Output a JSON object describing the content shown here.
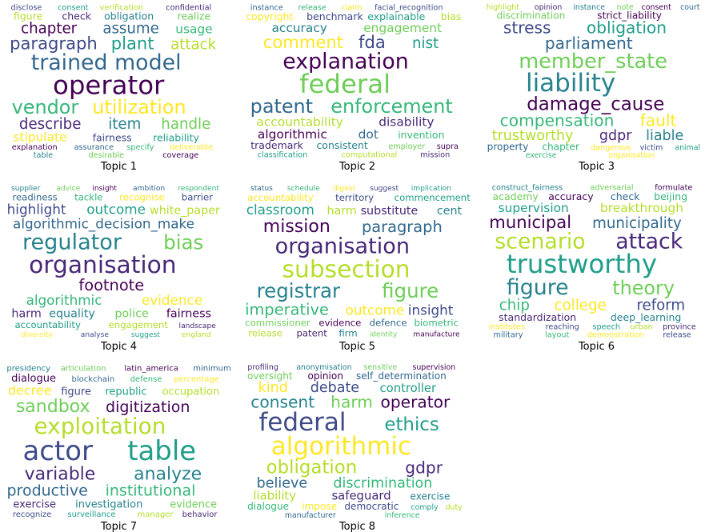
{
  "palette": [
    "#440154",
    "#482878",
    "#3e4a89",
    "#31688e",
    "#26828e",
    "#1f9e89",
    "#35b779",
    "#6ece58",
    "#b5de2b",
    "#fde725"
  ],
  "topics": [
    {
      "label": "Topic 1",
      "words": [
        {
          "text": "operator",
          "weight": 10
        },
        {
          "text": "trained model",
          "weight": 8
        },
        {
          "text": "vendor",
          "weight": 7
        },
        {
          "text": "utilization",
          "weight": 7
        },
        {
          "text": "paragraph",
          "weight": 6
        },
        {
          "text": "plant",
          "weight": 6
        },
        {
          "text": "attack",
          "weight": 5
        },
        {
          "text": "describe",
          "weight": 5
        },
        {
          "text": "item",
          "weight": 5
        },
        {
          "text": "handle",
          "weight": 5
        },
        {
          "text": "chapter",
          "weight": 5
        },
        {
          "text": "assume",
          "weight": 5
        },
        {
          "text": "usage",
          "weight": 4
        },
        {
          "text": "stipulate",
          "weight": 4
        },
        {
          "text": "fairness",
          "weight": 3
        },
        {
          "text": "reliability",
          "weight": 3
        },
        {
          "text": "figure",
          "weight": 3
        },
        {
          "text": "check",
          "weight": 3
        },
        {
          "text": "obligation",
          "weight": 3
        },
        {
          "text": "realize",
          "weight": 3
        },
        {
          "text": "explanation",
          "weight": 2
        },
        {
          "text": "assurance",
          "weight": 2
        },
        {
          "text": "specify",
          "weight": 2
        },
        {
          "text": "deliverable",
          "weight": 2
        },
        {
          "text": "disclose",
          "weight": 2
        },
        {
          "text": "consent",
          "weight": 2
        },
        {
          "text": "verification",
          "weight": 2
        },
        {
          "text": "confidential",
          "weight": 2
        },
        {
          "text": "table",
          "weight": 2
        },
        {
          "text": "desirable",
          "weight": 2
        },
        {
          "text": "coverage",
          "weight": 2
        }
      ]
    },
    {
      "label": "Topic 2",
      "words": [
        {
          "text": "federal",
          "weight": 10
        },
        {
          "text": "explanation",
          "weight": 8
        },
        {
          "text": "patent",
          "weight": 7
        },
        {
          "text": "enforcement",
          "weight": 7
        },
        {
          "text": "comment",
          "weight": 6
        },
        {
          "text": "fda",
          "weight": 6
        },
        {
          "text": "nist",
          "weight": 5
        },
        {
          "text": "accountability",
          "weight": 4
        },
        {
          "text": "disability",
          "weight": 4
        },
        {
          "text": "accuracy",
          "weight": 4
        },
        {
          "text": "engagement",
          "weight": 4
        },
        {
          "text": "algorithmic",
          "weight": 4
        },
        {
          "text": "dot",
          "weight": 4
        },
        {
          "text": "invention",
          "weight": 3
        },
        {
          "text": "copyright",
          "weight": 3
        },
        {
          "text": "benchmark",
          "weight": 3
        },
        {
          "text": "explainable",
          "weight": 3
        },
        {
          "text": "bias",
          "weight": 3
        },
        {
          "text": "trademark",
          "weight": 3
        },
        {
          "text": "consistent",
          "weight": 3
        },
        {
          "text": "employer",
          "weight": 2
        },
        {
          "text": "supra",
          "weight": 2
        },
        {
          "text": "instance",
          "weight": 2
        },
        {
          "text": "release",
          "weight": 2
        },
        {
          "text": "claim",
          "weight": 2
        },
        {
          "text": "facial_recognition",
          "weight": 2
        },
        {
          "text": "classification",
          "weight": 2
        },
        {
          "text": "computational",
          "weight": 2
        },
        {
          "text": "mission",
          "weight": 2
        }
      ]
    },
    {
      "label": "Topic 3",
      "words": [
        {
          "text": "liability",
          "weight": 10
        },
        {
          "text": "member_state",
          "weight": 8
        },
        {
          "text": "damage_cause",
          "weight": 7
        },
        {
          "text": "parliament",
          "weight": 6
        },
        {
          "text": "compensation",
          "weight": 6
        },
        {
          "text": "fault",
          "weight": 6
        },
        {
          "text": "stress",
          "weight": 6
        },
        {
          "text": "obligation",
          "weight": 6
        },
        {
          "text": "trustworthy",
          "weight": 5
        },
        {
          "text": "gdpr",
          "weight": 5
        },
        {
          "text": "liable",
          "weight": 5
        },
        {
          "text": "discrimination",
          "weight": 3
        },
        {
          "text": "strict_liability",
          "weight": 3
        },
        {
          "text": "property",
          "weight": 3
        },
        {
          "text": "chapter",
          "weight": 3
        },
        {
          "text": "dangerous",
          "weight": 2
        },
        {
          "text": "victim",
          "weight": 2
        },
        {
          "text": "animal",
          "weight": 2
        },
        {
          "text": "highlight",
          "weight": 2
        },
        {
          "text": "opinion",
          "weight": 2
        },
        {
          "text": "instance",
          "weight": 2
        },
        {
          "text": "note",
          "weight": 2
        },
        {
          "text": "consent",
          "weight": 2
        },
        {
          "text": "court",
          "weight": 2
        },
        {
          "text": "exercise",
          "weight": 2
        },
        {
          "text": "organisation",
          "weight": 2
        }
      ]
    },
    {
      "label": "Topic 4",
      "words": [
        {
          "text": "organisation",
          "weight": 10
        },
        {
          "text": "regulator",
          "weight": 9
        },
        {
          "text": "bias",
          "weight": 8
        },
        {
          "text": "footnote",
          "weight": 6
        },
        {
          "text": "algorithmic_decision_make",
          "weight": 5
        },
        {
          "text": "algorithmic",
          "weight": 5
        },
        {
          "text": "evidence",
          "weight": 5
        },
        {
          "text": "highlight",
          "weight": 5
        },
        {
          "text": "outcome",
          "weight": 5
        },
        {
          "text": "white_paper",
          "weight": 4
        },
        {
          "text": "harm",
          "weight": 4
        },
        {
          "text": "equality",
          "weight": 4
        },
        {
          "text": "police",
          "weight": 4
        },
        {
          "text": "fairness",
          "weight": 4
        },
        {
          "text": "readiness",
          "weight": 3
        },
        {
          "text": "tackle",
          "weight": 3
        },
        {
          "text": "recognise",
          "weight": 3
        },
        {
          "text": "barrier",
          "weight": 3
        },
        {
          "text": "accountability",
          "weight": 3
        },
        {
          "text": "engagement",
          "weight": 3
        },
        {
          "text": "landscape",
          "weight": 2
        },
        {
          "text": "supplier",
          "weight": 2
        },
        {
          "text": "advice",
          "weight": 2
        },
        {
          "text": "insight",
          "weight": 2
        },
        {
          "text": "ambition",
          "weight": 2
        },
        {
          "text": "respondent",
          "weight": 2
        },
        {
          "text": "diversity",
          "weight": 2
        },
        {
          "text": "analyse",
          "weight": 2
        },
        {
          "text": "suggest",
          "weight": 2
        },
        {
          "text": "england",
          "weight": 2
        }
      ]
    },
    {
      "label": "Topic 5",
      "words": [
        {
          "text": "subsection",
          "weight": 10
        },
        {
          "text": "organisation",
          "weight": 9
        },
        {
          "text": "registrar",
          "weight": 8
        },
        {
          "text": "figure",
          "weight": 8
        },
        {
          "text": "mission",
          "weight": 7
        },
        {
          "text": "paragraph",
          "weight": 6
        },
        {
          "text": "imperative",
          "weight": 6
        },
        {
          "text": "outcome",
          "weight": 5
        },
        {
          "text": "insight",
          "weight": 5
        },
        {
          "text": "classroom",
          "weight": 5
        },
        {
          "text": "harm",
          "weight": 4
        },
        {
          "text": "substitute",
          "weight": 4
        },
        {
          "text": "cent",
          "weight": 4
        },
        {
          "text": "commissioner",
          "weight": 3
        },
        {
          "text": "evidence",
          "weight": 3
        },
        {
          "text": "defence",
          "weight": 3
        },
        {
          "text": "biometric",
          "weight": 3
        },
        {
          "text": "accountability",
          "weight": 3
        },
        {
          "text": "territory",
          "weight": 3
        },
        {
          "text": "commencement",
          "weight": 3
        },
        {
          "text": "release",
          "weight": 3
        },
        {
          "text": "patent",
          "weight": 3
        },
        {
          "text": "firm",
          "weight": 3
        },
        {
          "text": "identity",
          "weight": 2
        },
        {
          "text": "manufacture",
          "weight": 2
        },
        {
          "text": "status",
          "weight": 2
        },
        {
          "text": "schedule",
          "weight": 2
        },
        {
          "text": "digest",
          "weight": 2
        },
        {
          "text": "suggest",
          "weight": 2
        },
        {
          "text": "implication",
          "weight": 2
        }
      ]
    },
    {
      "label": "Topic 6",
      "words": [
        {
          "text": "trustworthy",
          "weight": 10
        },
        {
          "text": "scenario",
          "weight": 8
        },
        {
          "text": "attack",
          "weight": 8
        },
        {
          "text": "figure",
          "weight": 8
        },
        {
          "text": "theory",
          "weight": 7
        },
        {
          "text": "municipal",
          "weight": 6
        },
        {
          "text": "municipality",
          "weight": 5
        },
        {
          "text": "chip",
          "weight": 5
        },
        {
          "text": "college",
          "weight": 5
        },
        {
          "text": "reform",
          "weight": 5
        },
        {
          "text": "supervision",
          "weight": 4
        },
        {
          "text": "breakthrough",
          "weight": 4
        },
        {
          "text": "standardization",
          "weight": 3
        },
        {
          "text": "deep_learning",
          "weight": 3
        },
        {
          "text": "academy",
          "weight": 3
        },
        {
          "text": "accuracy",
          "weight": 3
        },
        {
          "text": "check",
          "weight": 3
        },
        {
          "text": "beijing",
          "weight": 3
        },
        {
          "text": "institutes",
          "weight": 2
        },
        {
          "text": "reaching",
          "weight": 2
        },
        {
          "text": "speech",
          "weight": 2
        },
        {
          "text": "urban",
          "weight": 2
        },
        {
          "text": "province",
          "weight": 2
        },
        {
          "text": "construct_fairness",
          "weight": 2
        },
        {
          "text": "adversarial",
          "weight": 2
        },
        {
          "text": "formulate",
          "weight": 2
        },
        {
          "text": "military",
          "weight": 2
        },
        {
          "text": "layout",
          "weight": 2
        },
        {
          "text": "demonstration",
          "weight": 2
        },
        {
          "text": "release",
          "weight": 2
        }
      ]
    },
    {
      "label": "Topic 7",
      "words": [
        {
          "text": "actor",
          "weight": 10
        },
        {
          "text": "table",
          "weight": 10
        },
        {
          "text": "exploitation",
          "weight": 8
        },
        {
          "text": "variable",
          "weight": 6
        },
        {
          "text": "analyze",
          "weight": 6
        },
        {
          "text": "sandbox",
          "weight": 6
        },
        {
          "text": "digitization",
          "weight": 5
        },
        {
          "text": "productive",
          "weight": 5
        },
        {
          "text": "institutional",
          "weight": 5
        },
        {
          "text": "decree",
          "weight": 4
        },
        {
          "text": "figure",
          "weight": 3
        },
        {
          "text": "republic",
          "weight": 3
        },
        {
          "text": "occupation",
          "weight": 3
        },
        {
          "text": "exercise",
          "weight": 3
        },
        {
          "text": "investigation",
          "weight": 3
        },
        {
          "text": "evidence",
          "weight": 3
        },
        {
          "text": "dialogue",
          "weight": 3
        },
        {
          "text": "blockchain",
          "weight": 2
        },
        {
          "text": "defense",
          "weight": 2
        },
        {
          "text": "percentage",
          "weight": 2
        },
        {
          "text": "recognize",
          "weight": 2
        },
        {
          "text": "surveillance",
          "weight": 2
        },
        {
          "text": "manager",
          "weight": 2
        },
        {
          "text": "behavior",
          "weight": 2
        },
        {
          "text": "presidency",
          "weight": 2
        },
        {
          "text": "articulation",
          "weight": 2
        },
        {
          "text": "latin_america",
          "weight": 2
        },
        {
          "text": "minimum",
          "weight": 2
        }
      ]
    },
    {
      "label": "Topic 8",
      "words": [
        {
          "text": "algorithmic",
          "weight": 10
        },
        {
          "text": "federal",
          "weight": 10
        },
        {
          "text": "ethics",
          "weight": 7
        },
        {
          "text": "obligation",
          "weight": 7
        },
        {
          "text": "gdpr",
          "weight": 6
        },
        {
          "text": "consent",
          "weight": 6
        },
        {
          "text": "harm",
          "weight": 6
        },
        {
          "text": "operator",
          "weight": 6
        },
        {
          "text": "believe",
          "weight": 5
        },
        {
          "text": "discrimination",
          "weight": 5
        },
        {
          "text": "kind",
          "weight": 5
        },
        {
          "text": "debate",
          "weight": 5
        },
        {
          "text": "controller",
          "weight": 4
        },
        {
          "text": "liability",
          "weight": 4
        },
        {
          "text": "safeguard",
          "weight": 4
        },
        {
          "text": "exercise",
          "weight": 3
        },
        {
          "text": "oversight",
          "weight": 3
        },
        {
          "text": "opinion",
          "weight": 3
        },
        {
          "text": "self_determination",
          "weight": 3
        },
        {
          "text": "dialogue",
          "weight": 3
        },
        {
          "text": "impose",
          "weight": 3
        },
        {
          "text": "democratic",
          "weight": 3
        },
        {
          "text": "comply",
          "weight": 2
        },
        {
          "text": "duty",
          "weight": 2
        },
        {
          "text": "profiling",
          "weight": 2
        },
        {
          "text": "anonymisation",
          "weight": 2
        },
        {
          "text": "sensitive",
          "weight": 2
        },
        {
          "text": "supervision",
          "weight": 2
        },
        {
          "text": "manufacturer",
          "weight": 2
        },
        {
          "text": "inference",
          "weight": 2
        }
      ]
    }
  ]
}
